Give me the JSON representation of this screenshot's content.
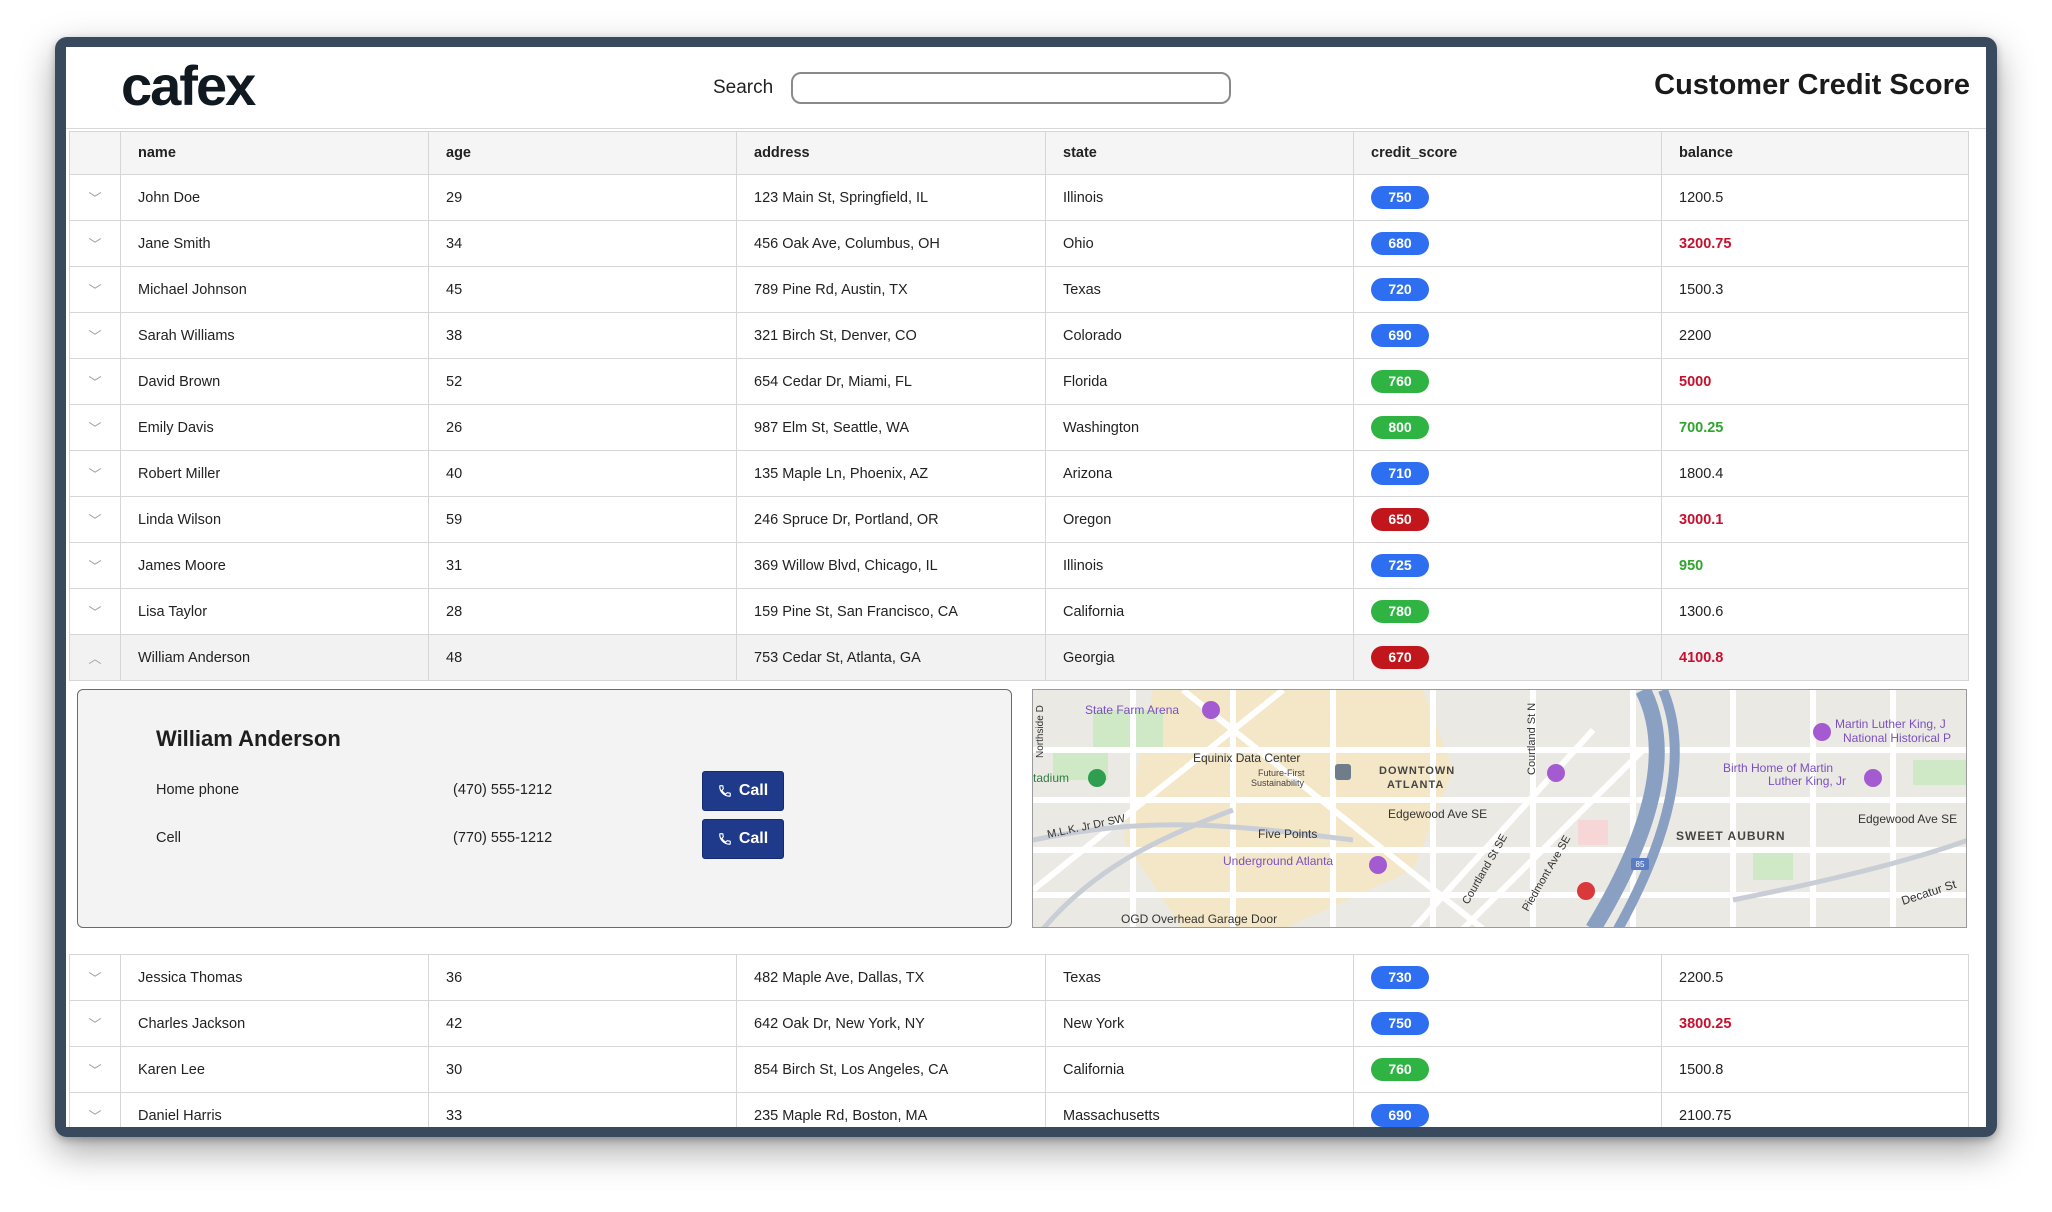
{
  "header": {
    "logo_text": "cafex",
    "search_label": "Search",
    "search_value": "",
    "page_title": "Customer Credit Score"
  },
  "columns": [
    "name",
    "age",
    "address",
    "state",
    "credit_score",
    "balance"
  ],
  "colors": {
    "score_blue": "#2e6ff2",
    "score_green": "#2fb343",
    "score_red": "#c0161c",
    "balance_red": "#c8102e",
    "balance_green": "#2ea52c",
    "call_button": "#1f3a8a"
  },
  "rows_top": [
    {
      "name": "John Doe",
      "age": "29",
      "address": "123 Main St, Springfield, IL",
      "state": "Illinois",
      "credit_score": "750",
      "score_color": "blue",
      "balance": "1200.5",
      "balance_style": "normal"
    },
    {
      "name": "Jane Smith",
      "age": "34",
      "address": "456 Oak Ave, Columbus, OH",
      "state": "Ohio",
      "credit_score": "680",
      "score_color": "blue",
      "balance": "3200.75",
      "balance_style": "red"
    },
    {
      "name": "Michael Johnson",
      "age": "45",
      "address": "789 Pine Rd, Austin, TX",
      "state": "Texas",
      "credit_score": "720",
      "score_color": "blue",
      "balance": "1500.3",
      "balance_style": "normal"
    },
    {
      "name": "Sarah Williams",
      "age": "38",
      "address": "321 Birch St, Denver, CO",
      "state": "Colorado",
      "credit_score": "690",
      "score_color": "blue",
      "balance": "2200",
      "balance_style": "normal"
    },
    {
      "name": "David Brown",
      "age": "52",
      "address": "654 Cedar Dr, Miami, FL",
      "state": "Florida",
      "credit_score": "760",
      "score_color": "green",
      "balance": "5000",
      "balance_style": "red"
    },
    {
      "name": "Emily Davis",
      "age": "26",
      "address": "987 Elm St, Seattle, WA",
      "state": "Washington",
      "credit_score": "800",
      "score_color": "green",
      "balance": "700.25",
      "balance_style": "green"
    },
    {
      "name": "Robert Miller",
      "age": "40",
      "address": "135 Maple Ln, Phoenix, AZ",
      "state": "Arizona",
      "credit_score": "710",
      "score_color": "blue",
      "balance": "1800.4",
      "balance_style": "normal"
    },
    {
      "name": "Linda Wilson",
      "age": "59",
      "address": "246 Spruce Dr, Portland, OR",
      "state": "Oregon",
      "credit_score": "650",
      "score_color": "red",
      "balance": "3000.1",
      "balance_style": "red"
    },
    {
      "name": "James Moore",
      "age": "31",
      "address": "369 Willow Blvd, Chicago, IL",
      "state": "Illinois",
      "credit_score": "725",
      "score_color": "blue",
      "balance": "950",
      "balance_style": "green"
    },
    {
      "name": "Lisa Taylor",
      "age": "28",
      "address": "159 Pine St, San Francisco, CA",
      "state": "California",
      "credit_score": "780",
      "score_color": "green",
      "balance": "1300.6",
      "balance_style": "normal"
    },
    {
      "name": "William Anderson",
      "age": "48",
      "address": "753 Cedar St, Atlanta, GA",
      "state": "Georgia",
      "credit_score": "670",
      "score_color": "red",
      "balance": "4100.8",
      "balance_style": "red",
      "expanded": true
    }
  ],
  "detail": {
    "name": "William Anderson",
    "phones": [
      {
        "label": "Home phone",
        "number": "(470) 555-1212",
        "button": "Call"
      },
      {
        "label": "Cell",
        "number": "(770) 555-1212",
        "button": "Call"
      }
    ],
    "map_labels": {
      "state_farm": "State Farm Arena",
      "stadium": "tadium",
      "equinix": "Equinix Data Center",
      "future_first": "Future-First",
      "sustainability": "Sustainability",
      "downtown": "DOWNTOWN",
      "atlanta": "ATLANTA",
      "edgewood": "Edgewood Ave SE",
      "edgewood2": "Edgewood Ave SE",
      "mlk": "M.L.K. Jr Dr SW",
      "five_points": "Five Points",
      "underground": "Underground Atlanta",
      "ogd": "OGD Overhead Garage Door",
      "courtland": "Courtland St SE",
      "courtland_n": "Courtland St N",
      "piedmont": "Piedmont Ave SE",
      "northside": "Northside D",
      "mlk_park": "Martin Luther King, J",
      "national_hist": "National Historical P",
      "birth_home": "Birth Home of Martin",
      "luther_king": "Luther King, Jr",
      "sweet_auburn": "SWEET AUBURN",
      "decatur": "Decatur St",
      "interstate": "85"
    }
  },
  "rows_bottom": [
    {
      "name": "Jessica Thomas",
      "age": "36",
      "address": "482 Maple Ave, Dallas, TX",
      "state": "Texas",
      "credit_score": "730",
      "score_color": "blue",
      "balance": "2200.5",
      "balance_style": "normal"
    },
    {
      "name": "Charles Jackson",
      "age": "42",
      "address": "642 Oak Dr, New York, NY",
      "state": "New York",
      "credit_score": "750",
      "score_color": "blue",
      "balance": "3800.25",
      "balance_style": "red"
    },
    {
      "name": "Karen Lee",
      "age": "30",
      "address": "854 Birch St, Los Angeles, CA",
      "state": "California",
      "credit_score": "760",
      "score_color": "green",
      "balance": "1500.8",
      "balance_style": "normal"
    },
    {
      "name": "Daniel Harris",
      "age": "33",
      "address": "235 Maple Rd, Boston, MA",
      "state": "Massachusetts",
      "credit_score": "690",
      "score_color": "blue",
      "balance": "2100.75",
      "balance_style": "normal"
    }
  ]
}
